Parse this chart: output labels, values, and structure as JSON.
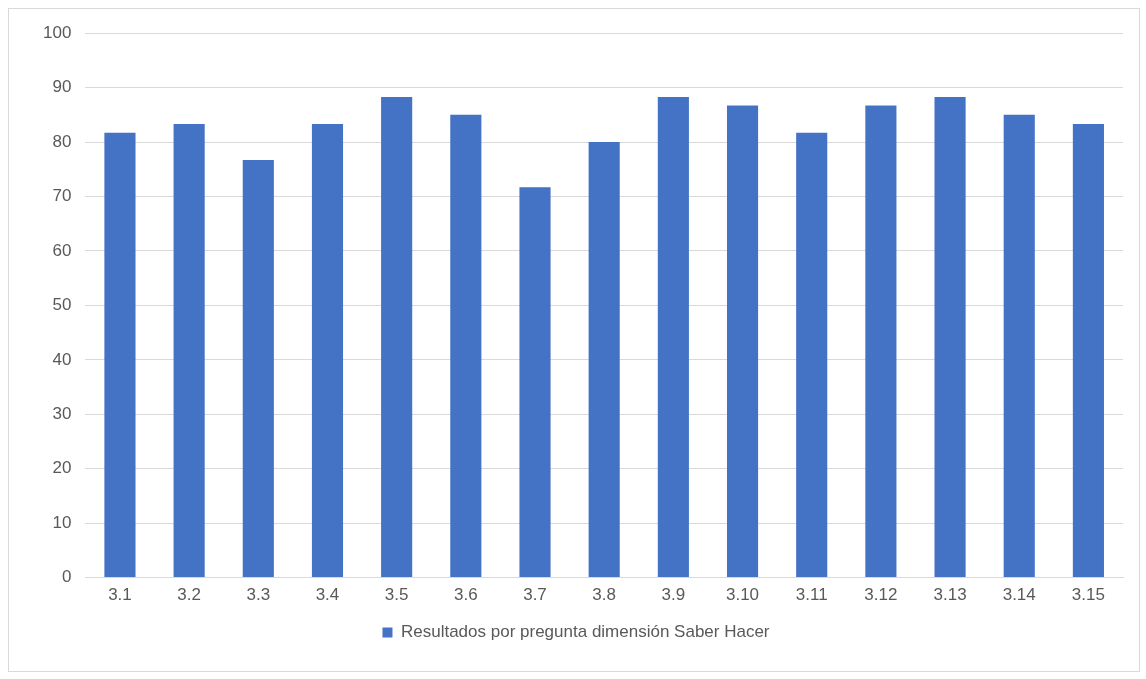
{
  "chart_data": {
    "type": "bar",
    "categories": [
      "3.1",
      "3.2",
      "3.3",
      "3.4",
      "3.5",
      "3.6",
      "3.7",
      "3.8",
      "3.9",
      "3.10",
      "3.11",
      "3.12",
      "3.13",
      "3.14",
      "3.15"
    ],
    "series": [
      {
        "name": "Resultados por pregunta dimensión Saber Hacer",
        "color": "#4472c4",
        "values": [
          81.7,
          83.3,
          76.7,
          83.3,
          88.3,
          85,
          71.7,
          80,
          88.3,
          86.7,
          81.7,
          86.7,
          88.3,
          85,
          83.3
        ]
      }
    ],
    "ylim": [
      0,
      100
    ],
    "yticks": [
      0,
      10,
      20,
      30,
      40,
      50,
      60,
      70,
      80,
      90,
      100
    ],
    "grid": "y",
    "legend": "bottom"
  }
}
